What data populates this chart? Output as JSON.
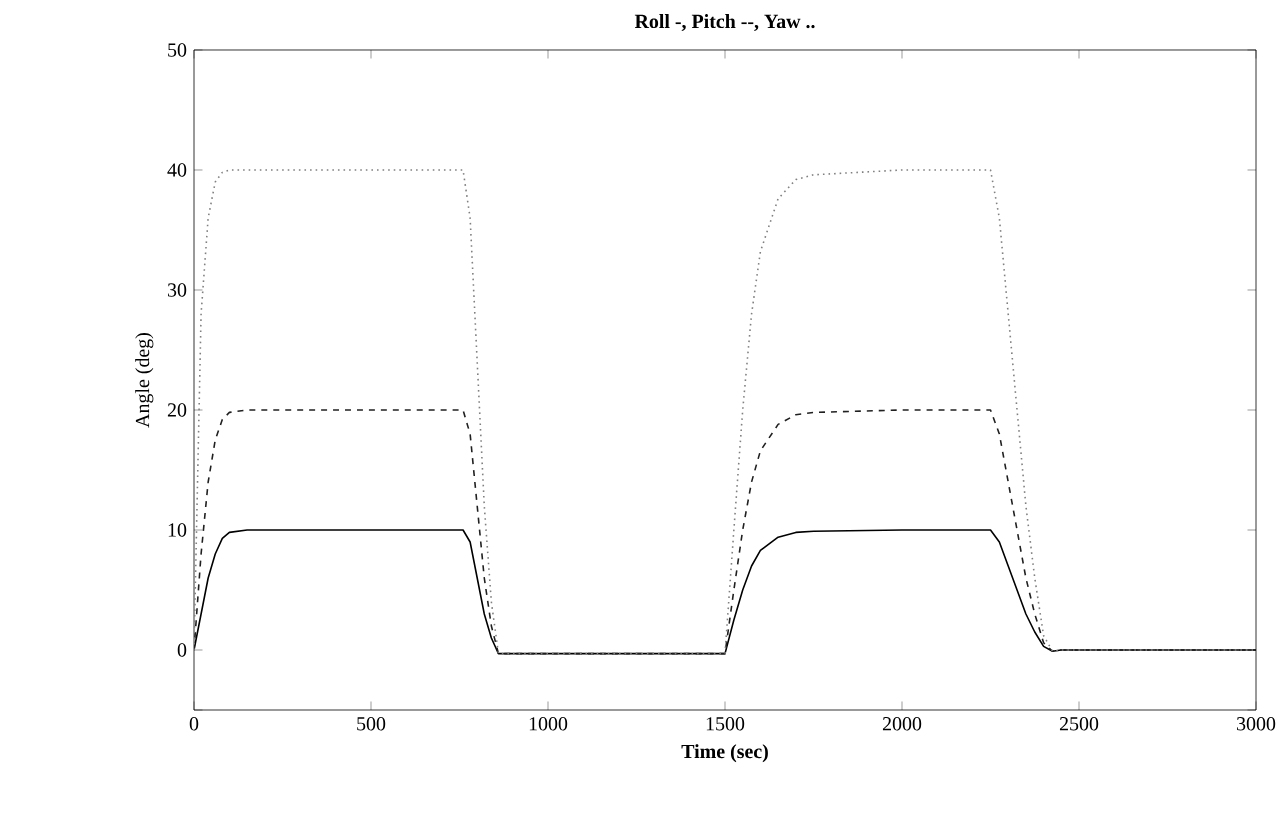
{
  "chart_data": {
    "type": "line",
    "title": "Roll -, Pitch --, Yaw ..",
    "xlabel": "Time (sec)",
    "ylabel": "Angle (deg)",
    "x": [
      0,
      20,
      40,
      60,
      80,
      100,
      150,
      300,
      500,
      760,
      780,
      800,
      820,
      840,
      860,
      900,
      1200,
      1500,
      1525,
      1550,
      1575,
      1600,
      1650,
      1700,
      1750,
      2000,
      2250,
      2275,
      2300,
      2325,
      2350,
      2375,
      2400,
      2425,
      2450,
      2700,
      3000
    ],
    "series": [
      {
        "color": "#000000",
        "line_style": "solid",
        "values": [
          0,
          3,
          6,
          8,
          9.3,
          9.8,
          10,
          10,
          10,
          10,
          9,
          6,
          3,
          1,
          -0.3,
          -0.3,
          -0.3,
          -0.3,
          2.5,
          5,
          7,
          8.3,
          9.4,
          9.8,
          9.9,
          10,
          10,
          9,
          7,
          5,
          3,
          1.5,
          0.3,
          -0.1,
          0,
          0,
          0
        ]
      },
      {
        "color": "#202020",
        "line_style": "dashed",
        "values": [
          0,
          8,
          14,
          17.5,
          19.2,
          19.8,
          20,
          20,
          20,
          20,
          18,
          12,
          6,
          2,
          -0.3,
          -0.3,
          -0.3,
          -0.3,
          5,
          10,
          14,
          16.6,
          18.8,
          19.6,
          19.8,
          20,
          20,
          18,
          14,
          10,
          6,
          3,
          0.6,
          -0.1,
          0,
          0,
          0
        ]
      },
      {
        "color": "#808080",
        "line_style": "dotted",
        "values": [
          0,
          28,
          36,
          39,
          39.8,
          40,
          40,
          40,
          40,
          40,
          36,
          24,
          12,
          4,
          -0.3,
          -0.3,
          -0.3,
          -0.3,
          10,
          20,
          28,
          33.2,
          37.6,
          39.2,
          39.6,
          40,
          40,
          36,
          28,
          20,
          12,
          6,
          1.2,
          -0.1,
          0,
          0,
          0
        ]
      }
    ],
    "xlim": [
      0,
      3000
    ],
    "ylim": [
      -5,
      50
    ],
    "xticks": [
      0,
      500,
      1000,
      1500,
      2000,
      2500,
      3000
    ],
    "yticks": [
      {
        "value": -5,
        "label": null
      },
      0,
      10,
      20,
      30,
      40,
      50
    ],
    "grid": false,
    "marker": "none"
  }
}
